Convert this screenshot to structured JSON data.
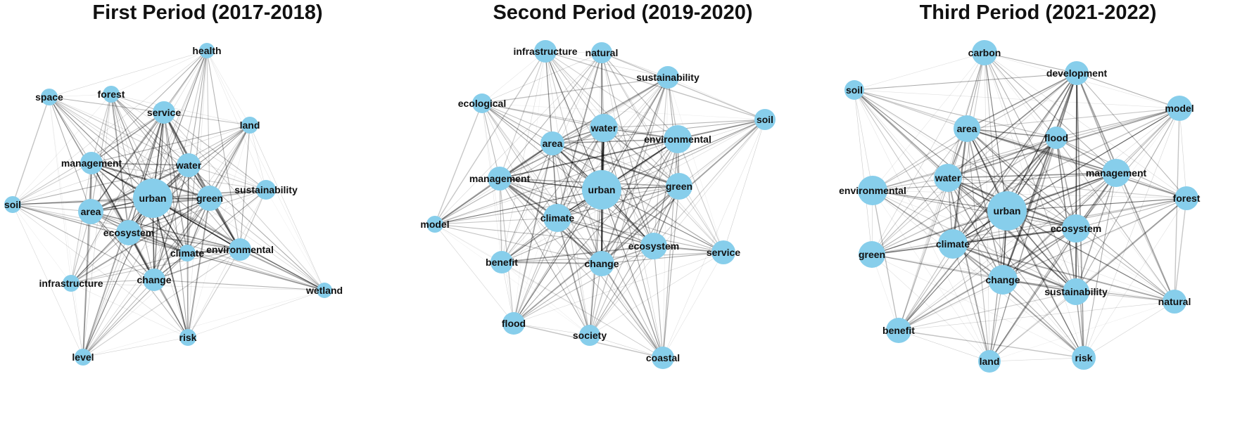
{
  "node_color": "#87CEEB",
  "edge_color": "#000000",
  "panels": [
    {
      "title": "First Period (2017-2018)",
      "nodes": [
        "health",
        "space",
        "forest",
        "service",
        "land",
        "management",
        "water",
        "soil",
        "urban",
        "green",
        "sustainability",
        "area",
        "ecosystem",
        "climate",
        "environmental",
        "infrastructure",
        "change",
        "wetland",
        "level",
        "risk"
      ],
      "hubs": [
        "urban",
        "water",
        "ecosystem",
        "area",
        "green",
        "climate",
        "change",
        "environmental",
        "management",
        "service"
      ]
    },
    {
      "title": "Second Period (2019-2020)",
      "nodes": [
        "infrastructure",
        "natural",
        "sustainability",
        "ecological",
        "soil",
        "water",
        "area",
        "environmental",
        "management",
        "urban",
        "green",
        "model",
        "climate",
        "ecosystem",
        "service",
        "benefit",
        "change",
        "flood",
        "society",
        "coastal"
      ],
      "hubs": [
        "urban",
        "water",
        "climate",
        "change",
        "area",
        "environmental",
        "green",
        "ecosystem",
        "management"
      ]
    },
    {
      "title": "Third Period (2021-2022)",
      "nodes": [
        "carbon",
        "development",
        "soil",
        "model",
        "area",
        "flood",
        "management",
        "water",
        "environmental",
        "forest",
        "urban",
        "ecosystem",
        "climate",
        "green",
        "change",
        "sustainability",
        "natural",
        "benefit",
        "land",
        "risk"
      ],
      "hubs": [
        "urban",
        "area",
        "water",
        "climate",
        "change",
        "management",
        "ecosystem",
        "sustainability",
        "flood",
        "development"
      ]
    }
  ]
}
